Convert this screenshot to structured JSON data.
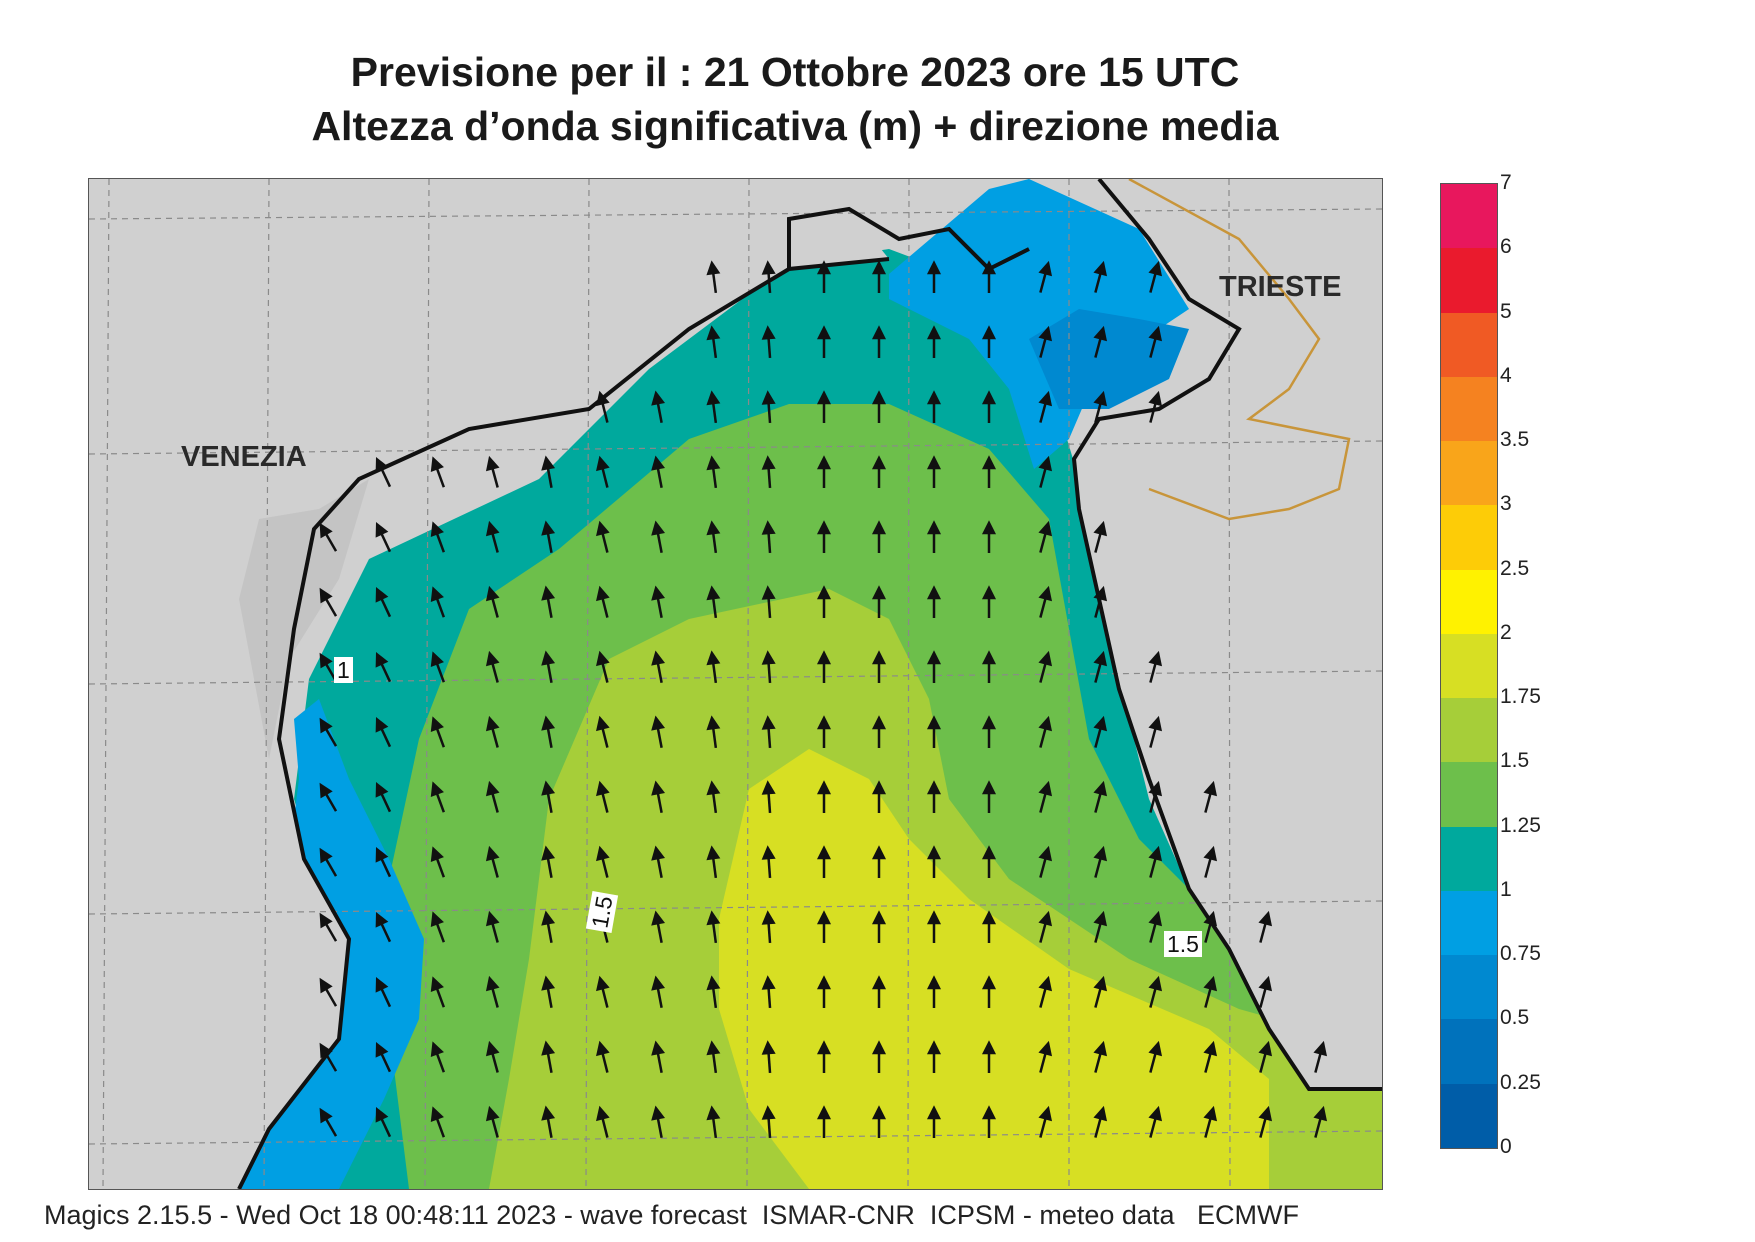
{
  "header": {
    "title_line1": "Previsione per il  :  21  Ottobre  2023   ore 15 UTC",
    "title_line2": "Altezza d’onda significativa (m) + direzione media"
  },
  "map": {
    "cities": {
      "venezia": "VENEZIA",
      "trieste": "TRIESTE"
    },
    "contour_labels": [
      "1",
      "1.5",
      "1.5"
    ],
    "colors": {
      "land": "#d0d0d0",
      "coast": "#111111",
      "border": "#c8953a",
      "grid": "#8a8a8a"
    }
  },
  "legend": {
    "levels": [
      {
        "label": "7",
        "color": "#e8175d"
      },
      {
        "label": "6",
        "color": "#ea1a2d"
      },
      {
        "label": "5",
        "color": "#f05a24"
      },
      {
        "label": "4",
        "color": "#f58220"
      },
      {
        "label": "3.5",
        "color": "#f9a51a"
      },
      {
        "label": "3",
        "color": "#fdcc07"
      },
      {
        "label": "2.5",
        "color": "#fff200"
      },
      {
        "label": "2",
        "color": "#d7df23"
      },
      {
        "label": "1.75",
        "color": "#a6ce39"
      },
      {
        "label": "1.5",
        "color": "#6dbf4b"
      },
      {
        "label": "1.25",
        "color": "#00a99d"
      },
      {
        "label": "1",
        "color": "#009fe3"
      },
      {
        "label": "0.75",
        "color": "#0089d0"
      },
      {
        "label": "0.5",
        "color": "#0072bc"
      },
      {
        "label": "0.25",
        "color": "#005da8"
      },
      {
        "label": "0",
        "color": ""
      }
    ]
  },
  "footer": "Magics 2.15.5 - Wed Oct 18 00:48:11 2023 - wave forecast  ISMAR-CNR  ICPSM - meteo data   ECMWF"
}
